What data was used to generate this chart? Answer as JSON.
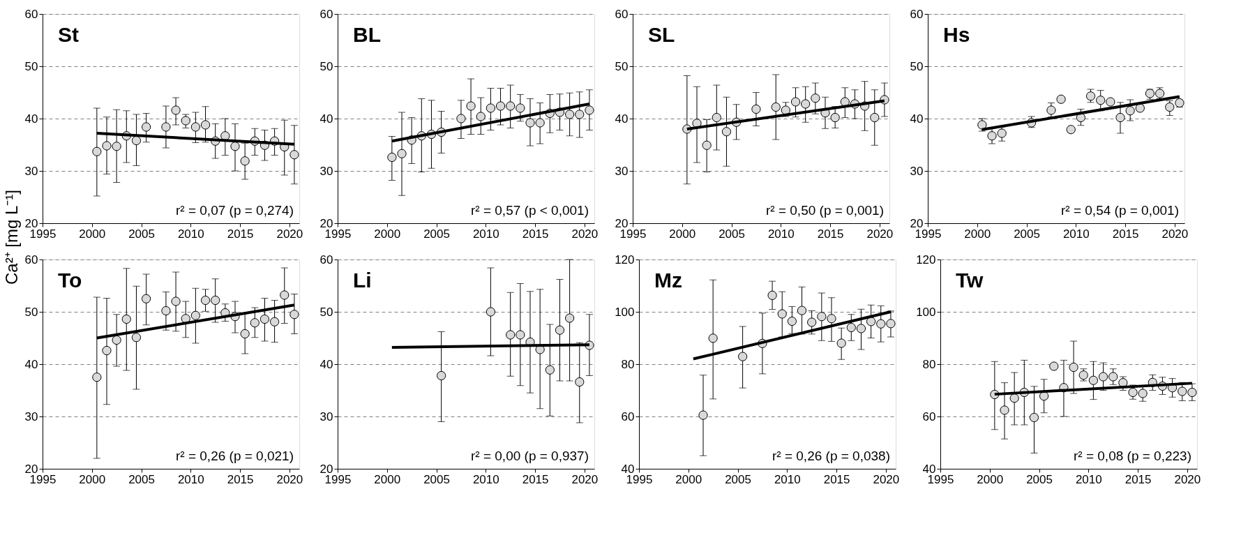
{
  "chart_data": [
    {
      "type": "scatter",
      "title": "St",
      "ylabel": "Ca²⁺ [mg L⁻¹]",
      "annotations": [
        "r² = 0,07 (p = 0,274)"
      ],
      "xlim": [
        1995,
        2021
      ],
      "xticks": [
        1995,
        2000,
        2005,
        2010,
        2015,
        2020
      ],
      "ylim": [
        20,
        60
      ],
      "yticks": [
        20,
        30,
        40,
        50,
        60
      ],
      "grid": "y",
      "marker": "circle",
      "series": [
        {
          "type": "scatter",
          "color": "#d9d9d9",
          "x": [
            2000.5,
            2001.5,
            2002.5,
            2003.5,
            2004.5,
            2005.5,
            2007.5,
            2008.5,
            2009.5,
            2010.5,
            2011.5,
            2012.5,
            2013.5,
            2014.5,
            2015.5,
            2016.5,
            2017.5,
            2018.5,
            2019.5,
            2020.5
          ],
          "values": [
            33.7,
            34.8,
            34.7,
            36.7,
            35.8,
            38.4,
            38.4,
            41.6,
            39.6,
            38.4,
            38.8,
            35.7,
            36.7,
            34.7,
            31.9,
            35.7,
            34.9,
            35.7,
            34.6,
            33.1
          ],
          "errors": [
            [
              25.2,
              42
            ],
            [
              29.4,
              40.3
            ],
            [
              27.8,
              41.7
            ],
            [
              31.6,
              41.5
            ],
            [
              31,
              40.8
            ],
            [
              35.5,
              41
            ],
            [
              34.4,
              42.4
            ],
            [
              38.8,
              44
            ],
            [
              38.2,
              40.8
            ],
            [
              35.4,
              41.2
            ],
            [
              35.5,
              42.3
            ],
            [
              32.4,
              39
            ],
            [
              33,
              40
            ],
            [
              30,
              39
            ],
            [
              28.4,
              35.3
            ],
            [
              33,
              38.1
            ],
            [
              32,
              37.8
            ],
            [
              33,
              38.1
            ],
            [
              29.2,
              39.7
            ],
            [
              27.5,
              38.7
            ]
          ]
        },
        {
          "type": "line",
          "color": "#000000",
          "x": [
            2000.5,
            2020.5
          ],
          "values": [
            37.2,
            35.1
          ],
          "marker": "none"
        }
      ]
    },
    {
      "type": "scatter",
      "title": "BL",
      "annotations": [
        "r² = 0,57 (p < 0,001)"
      ],
      "xlim": [
        1995,
        2021
      ],
      "xticks": [
        1995,
        2000,
        2005,
        2010,
        2015,
        2020
      ],
      "ylim": [
        20,
        60
      ],
      "yticks": [
        20,
        30,
        40,
        50,
        60
      ],
      "grid": "y",
      "marker": "circle",
      "series": [
        {
          "type": "scatter",
          "color": "#d9d9d9",
          "x": [
            2000.5,
            2001.5,
            2002.5,
            2003.5,
            2004.5,
            2005.5,
            2007.5,
            2008.5,
            2009.5,
            2010.5,
            2011.5,
            2012.5,
            2013.5,
            2014.5,
            2015.5,
            2016.5,
            2017.5,
            2018.5,
            2019.5,
            2020.5
          ],
          "values": [
            32.6,
            33.3,
            35.9,
            36.7,
            37,
            37.4,
            40,
            42.4,
            40.4,
            42,
            42.4,
            42.4,
            42,
            39.2,
            39.2,
            41,
            41.2,
            40.8,
            40.8,
            41.6
          ],
          "errors": [
            [
              28.2,
              36.6
            ],
            [
              25.3,
              41.2
            ],
            [
              31.4,
              40.2
            ],
            [
              29.8,
              43.8
            ],
            [
              30.5,
              43.5
            ],
            [
              33.4,
              41.4
            ],
            [
              36.2,
              43.5
            ],
            [
              37,
              47.6
            ],
            [
              37,
              44
            ],
            [
              37.8,
              45.8
            ],
            [
              38.8,
              45.8
            ],
            [
              38.2,
              46.4
            ],
            [
              39.5,
              44.6
            ],
            [
              34.8,
              43.8
            ],
            [
              35.2,
              43
            ],
            [
              37.3,
              44.6
            ],
            [
              37.8,
              44.7
            ],
            [
              36.7,
              44.9
            ],
            [
              36.4,
              45.1
            ],
            [
              37.8,
              45.5
            ]
          ]
        },
        {
          "type": "line",
          "color": "#000000",
          "x": [
            2000.5,
            2020.5
          ],
          "values": [
            35.7,
            42.8
          ],
          "marker": "none"
        }
      ]
    },
    {
      "type": "scatter",
      "title": "SL",
      "annotations": [
        "r² = 0,50 (p = 0,001)"
      ],
      "xlim": [
        1995,
        2021
      ],
      "xticks": [
        1995,
        2000,
        2005,
        2010,
        2015,
        2020
      ],
      "ylim": [
        20,
        60
      ],
      "yticks": [
        20,
        30,
        40,
        50,
        60
      ],
      "grid": "y",
      "marker": "circle",
      "series": [
        {
          "type": "scatter",
          "color": "#d9d9d9",
          "x": [
            2000.5,
            2001.5,
            2002.5,
            2003.5,
            2004.5,
            2005.5,
            2007.5,
            2009.5,
            2010.5,
            2011.5,
            2012.5,
            2013.5,
            2014.5,
            2015.5,
            2016.5,
            2017.5,
            2018.5,
            2019.5,
            2020.5
          ],
          "values": [
            38,
            39.1,
            34.9,
            40.2,
            37.5,
            39.3,
            41.8,
            42.2,
            41.6,
            43.2,
            42.8,
            43.9,
            41.1,
            40.2,
            43.2,
            42.8,
            42.4,
            40.2,
            43.6
          ],
          "errors": [
            [
              27.5,
              48.2
            ],
            [
              31.6,
              46.1
            ],
            [
              29.8,
              39.8
            ],
            [
              34,
              46.4
            ],
            [
              30.9,
              44.1
            ],
            [
              36,
              42.7
            ],
            [
              38.6,
              45
            ],
            [
              36,
              48.4
            ],
            [
              40.4,
              43.1
            ],
            [
              40.3,
              45.9
            ],
            [
              39.3,
              46.1
            ],
            [
              40.9,
              46.8
            ],
            [
              38.1,
              44.1
            ],
            [
              38.2,
              42.3
            ],
            [
              40.2,
              45.9
            ],
            [
              40,
              45.5
            ],
            [
              37.7,
              47.1
            ],
            [
              34.9,
              45.5
            ],
            [
              40.4,
              46.8
            ]
          ]
        },
        {
          "type": "line",
          "color": "#000000",
          "x": [
            2000.5,
            2020.5
          ],
          "values": [
            38,
            43.4
          ],
          "marker": "none"
        }
      ]
    },
    {
      "type": "scatter",
      "title": "Hs",
      "annotations": [
        "r² = 0,54 (p = 0,001)"
      ],
      "xlim": [
        1995,
        2021
      ],
      "xticks": [
        1995,
        2000,
        2005,
        2010,
        2015,
        2020
      ],
      "ylim": [
        20,
        60
      ],
      "yticks": [
        20,
        30,
        40,
        50,
        60
      ],
      "grid": "y",
      "marker": "circle",
      "series": [
        {
          "type": "scatter",
          "color": "#d9d9d9",
          "x": [
            2000.5,
            2001.5,
            2002.5,
            2005.5,
            2007.5,
            2008.5,
            2009.5,
            2010.5,
            2011.5,
            2012.5,
            2013.5,
            2014.5,
            2015.5,
            2016.5,
            2017.5,
            2018.5,
            2019.5,
            2020.5
          ],
          "values": [
            38.8,
            36.7,
            37.2,
            39.2,
            41.6,
            43.7,
            37.9,
            40.2,
            44.3,
            43.5,
            43.2,
            40.2,
            41.5,
            42,
            44.8,
            44.8,
            42.2,
            43
          ],
          "errors": [
            [
              37.6,
              40
            ],
            [
              35.2,
              38.1
            ],
            [
              35.7,
              38.4
            ],
            [
              38.3,
              40.4
            ],
            [
              40.3,
              43
            ],
            null,
            null,
            [
              38.7,
              41.8
            ],
            [
              43.1,
              45.6
            ],
            [
              41.5,
              45.4
            ],
            null,
            [
              37.2,
              43.1
            ],
            [
              39.6,
              43.6
            ],
            [
              41.5,
              42.6
            ],
            [
              43.7,
              45.6
            ],
            [
              43.8,
              45.9
            ],
            [
              40.6,
              43.4
            ],
            [
              42.2,
              43.6
            ]
          ]
        },
        {
          "type": "line",
          "color": "#000000",
          "x": [
            2000.5,
            2020.5
          ],
          "values": [
            37.9,
            44.2
          ],
          "marker": "none"
        }
      ]
    },
    {
      "type": "scatter",
      "title": "To",
      "annotations": [
        "r² = 0,26 (p = 0,021)"
      ],
      "xlim": [
        1995,
        2021
      ],
      "xticks": [
        1995,
        2000,
        2005,
        2010,
        2015,
        2020
      ],
      "ylim": [
        20,
        60
      ],
      "yticks": [
        20,
        30,
        40,
        50,
        60
      ],
      "grid": "y",
      "marker": "circle",
      "series": [
        {
          "type": "scatter",
          "color": "#d9d9d9",
          "x": [
            2000.5,
            2001.5,
            2002.5,
            2003.5,
            2004.5,
            2005.5,
            2007.5,
            2008.5,
            2009.5,
            2010.5,
            2011.5,
            2012.5,
            2013.5,
            2014.5,
            2015.5,
            2016.5,
            2017.5,
            2018.5,
            2019.5,
            2020.5
          ],
          "values": [
            37.5,
            42.6,
            44.6,
            48.6,
            45.1,
            52.5,
            50.2,
            52,
            48.7,
            49.3,
            52.2,
            52.2,
            49.8,
            49.1,
            45.8,
            47.9,
            48.6,
            48.1,
            53.2,
            49.5
          ],
          "errors": [
            [
              22,
              52.8
            ],
            [
              32.3,
              52.6
            ],
            [
              39.6,
              49.5
            ],
            [
              38.8,
              58.3
            ],
            [
              35.2,
              54.9
            ],
            [
              47.5,
              57.2
            ],
            [
              46.5,
              53.8
            ],
            [
              46.3,
              57.6
            ],
            [
              45.1,
              52
            ],
            [
              44,
              54.5
            ],
            [
              50.1,
              54.3
            ],
            [
              48,
              56.3
            ],
            [
              48.2,
              51.5
            ],
            [
              46,
              52
            ],
            [
              42,
              49.8
            ],
            [
              45.1,
              50.8
            ],
            [
              44.4,
              52.6
            ],
            [
              44.2,
              52.2
            ],
            [
              47.8,
              58.4
            ],
            [
              45.8,
              53.4
            ]
          ]
        },
        {
          "type": "line",
          "color": "#000000",
          "x": [
            2000.5,
            2020.5
          ],
          "values": [
            45,
            51.3
          ],
          "marker": "none"
        }
      ]
    },
    {
      "type": "scatter",
      "title": "Li",
      "annotations": [
        "r² = 0,00 (p = 0,937)"
      ],
      "xlim": [
        1995,
        2021
      ],
      "xticks": [
        1995,
        2000,
        2005,
        2010,
        2015,
        2020
      ],
      "ylim": [
        20,
        60
      ],
      "yticks": [
        20,
        30,
        40,
        50,
        60
      ],
      "grid": "y",
      "marker": "circle",
      "series": [
        {
          "type": "scatter",
          "color": "#d9d9d9",
          "x": [
            2005.5,
            2010.5,
            2012.5,
            2013.5,
            2014.5,
            2015.5,
            2016.5,
            2017.5,
            2018.5,
            2019.5,
            2020.5
          ],
          "values": [
            37.8,
            50,
            45.6,
            45.6,
            44.2,
            42.8,
            38.9,
            46.5,
            48.8,
            36.6,
            43.6
          ],
          "errors": [
            [
              29,
              46.2
            ],
            [
              41.6,
              58.4
            ],
            [
              37.7,
              53.7
            ],
            [
              35.9,
              55.4
            ],
            [
              34.5,
              53.9
            ],
            [
              31.5,
              54.3
            ],
            [
              30.1,
              47.6
            ],
            [
              36.8,
              56.2
            ],
            [
              36.8,
              60
            ],
            [
              28.8,
              44.1
            ],
            [
              37.8,
              49.5
            ]
          ]
        },
        {
          "type": "line",
          "color": "#000000",
          "x": [
            2000.5,
            2020.5
          ],
          "values": [
            43.2,
            43.7
          ],
          "marker": "none"
        }
      ]
    },
    {
      "type": "scatter",
      "title": "Mz",
      "annotations": [
        "r² = 0,26 (p = 0,038)"
      ],
      "xlim": [
        1995,
        2021
      ],
      "xticks": [
        1995,
        2000,
        2005,
        2010,
        2015,
        2020
      ],
      "ylim": [
        40,
        120
      ],
      "yticks": [
        40,
        60,
        80,
        100,
        120
      ],
      "grid": "y",
      "marker": "circle",
      "series": [
        {
          "type": "scatter",
          "color": "#d9d9d9",
          "x": [
            2001.5,
            2002.5,
            2005.5,
            2007.5,
            2008.5,
            2009.5,
            2010.5,
            2011.5,
            2012.5,
            2013.5,
            2014.5,
            2015.5,
            2016.5,
            2017.5,
            2018.5,
            2019.5,
            2020.5
          ],
          "values": [
            60.5,
            89.9,
            82.9,
            87.9,
            106.3,
            99.2,
            96.4,
            100.5,
            96,
            98.2,
            97.4,
            88,
            94,
            93.6,
            96.3,
            95.4,
            95.5
          ],
          "errors": [
            [
              45,
              75.8
            ],
            [
              66.7,
              112.2
            ],
            [
              70.9,
              94.4
            ],
            [
              76.3,
              99.5
            ],
            [
              100.9,
              111.7
            ],
            [
              90.4,
              107.7
            ],
            [
              91.7,
              102
            ],
            [
              91.5,
              109.5
            ],
            [
              91.5,
              100.4
            ],
            [
              89,
              107.2
            ],
            [
              88.7,
              105.4
            ],
            [
              81.8,
              93.8
            ],
            [
              89,
              99
            ],
            [
              85.6,
              101
            ],
            [
              90,
              102.6
            ],
            [
              88.5,
              102.3
            ],
            [
              90.4,
              100.3
            ]
          ]
        },
        {
          "type": "line",
          "color": "#000000",
          "x": [
            2000.5,
            2020.5
          ],
          "values": [
            82,
            100
          ],
          "marker": "none"
        }
      ]
    },
    {
      "type": "scatter",
      "title": "Tw",
      "annotations": [
        "r² = 0,08 (p = 0,223)"
      ],
      "xlim": [
        1995,
        2021
      ],
      "xticks": [
        1995,
        2000,
        2005,
        2010,
        2015,
        2020
      ],
      "ylim": [
        40,
        120
      ],
      "yticks": [
        40,
        60,
        80,
        100,
        120
      ],
      "grid": "y",
      "marker": "circle",
      "series": [
        {
          "type": "scatter",
          "color": "#d9d9d9",
          "x": [
            2000.5,
            2001.5,
            2002.5,
            2003.5,
            2004.5,
            2005.5,
            2006.5,
            2007.5,
            2008.5,
            2009.5,
            2010.5,
            2011.5,
            2012.5,
            2013.5,
            2014.5,
            2015.5,
            2016.5,
            2017.5,
            2018.5,
            2019.5,
            2020.5
          ],
          "values": [
            68.4,
            62.4,
            67,
            69.2,
            59.6,
            67.8,
            79.2,
            71,
            78.8,
            75.8,
            73.8,
            75.2,
            75.2,
            72.9,
            69.2,
            68.8,
            73,
            71.6,
            71,
            69.6,
            69.2
          ],
          "errors": [
            [
              55,
              81
            ],
            [
              51.4,
              72.9
            ],
            [
              56.8,
              76.8
            ],
            [
              56.8,
              81.5
            ],
            [
              46,
              71.5
            ],
            [
              61.4,
              74.2
            ],
            null,
            [
              60,
              81.5
            ],
            [
              68.8,
              88.8
            ],
            [
              73.6,
              78.2
            ],
            [
              66.5,
              81
            ],
            [
              70,
              80.5
            ],
            [
              72.2,
              78.2
            ],
            [
              70,
              75.2
            ],
            [
              66.6,
              72
            ],
            [
              65.8,
              71.7
            ],
            [
              70,
              75.9
            ],
            [
              68.4,
              75
            ],
            [
              67.4,
              74.5
            ],
            [
              66,
              73
            ],
            [
              66,
              72.5
            ]
          ]
        },
        {
          "type": "line",
          "color": "#000000",
          "x": [
            2000.5,
            2020.5
          ],
          "values": [
            68.5,
            72.7
          ],
          "marker": "none"
        }
      ]
    }
  ]
}
